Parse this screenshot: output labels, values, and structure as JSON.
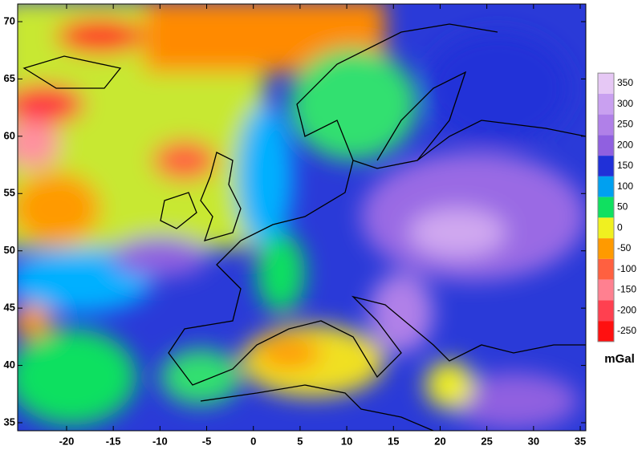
{
  "map": {
    "xlim": [
      -25.24,
      35.6
    ],
    "ylim": [
      34.3,
      71.54
    ],
    "xticks": [
      -20,
      -15,
      -10,
      -5,
      0,
      5,
      10,
      15,
      20,
      25,
      30,
      35
    ],
    "yticks": [
      35,
      40,
      45,
      50,
      55,
      60,
      65,
      70
    ],
    "colorbar": {
      "ticks": [
        350,
        300,
        250,
        200,
        150,
        100,
        50,
        0,
        -50,
        -100,
        -150,
        -200,
        -250
      ],
      "colors": [
        "#e6c8f5",
        "#c9a0f0",
        "#b080e8",
        "#9060e0",
        "#2030d8",
        "#00a0f0",
        "#10e060",
        "#f0f020",
        "#ff9a00",
        "#ff6040",
        "#ff8090",
        "#ff4050",
        "#ff1010"
      ],
      "unit": "mGal"
    }
  }
}
